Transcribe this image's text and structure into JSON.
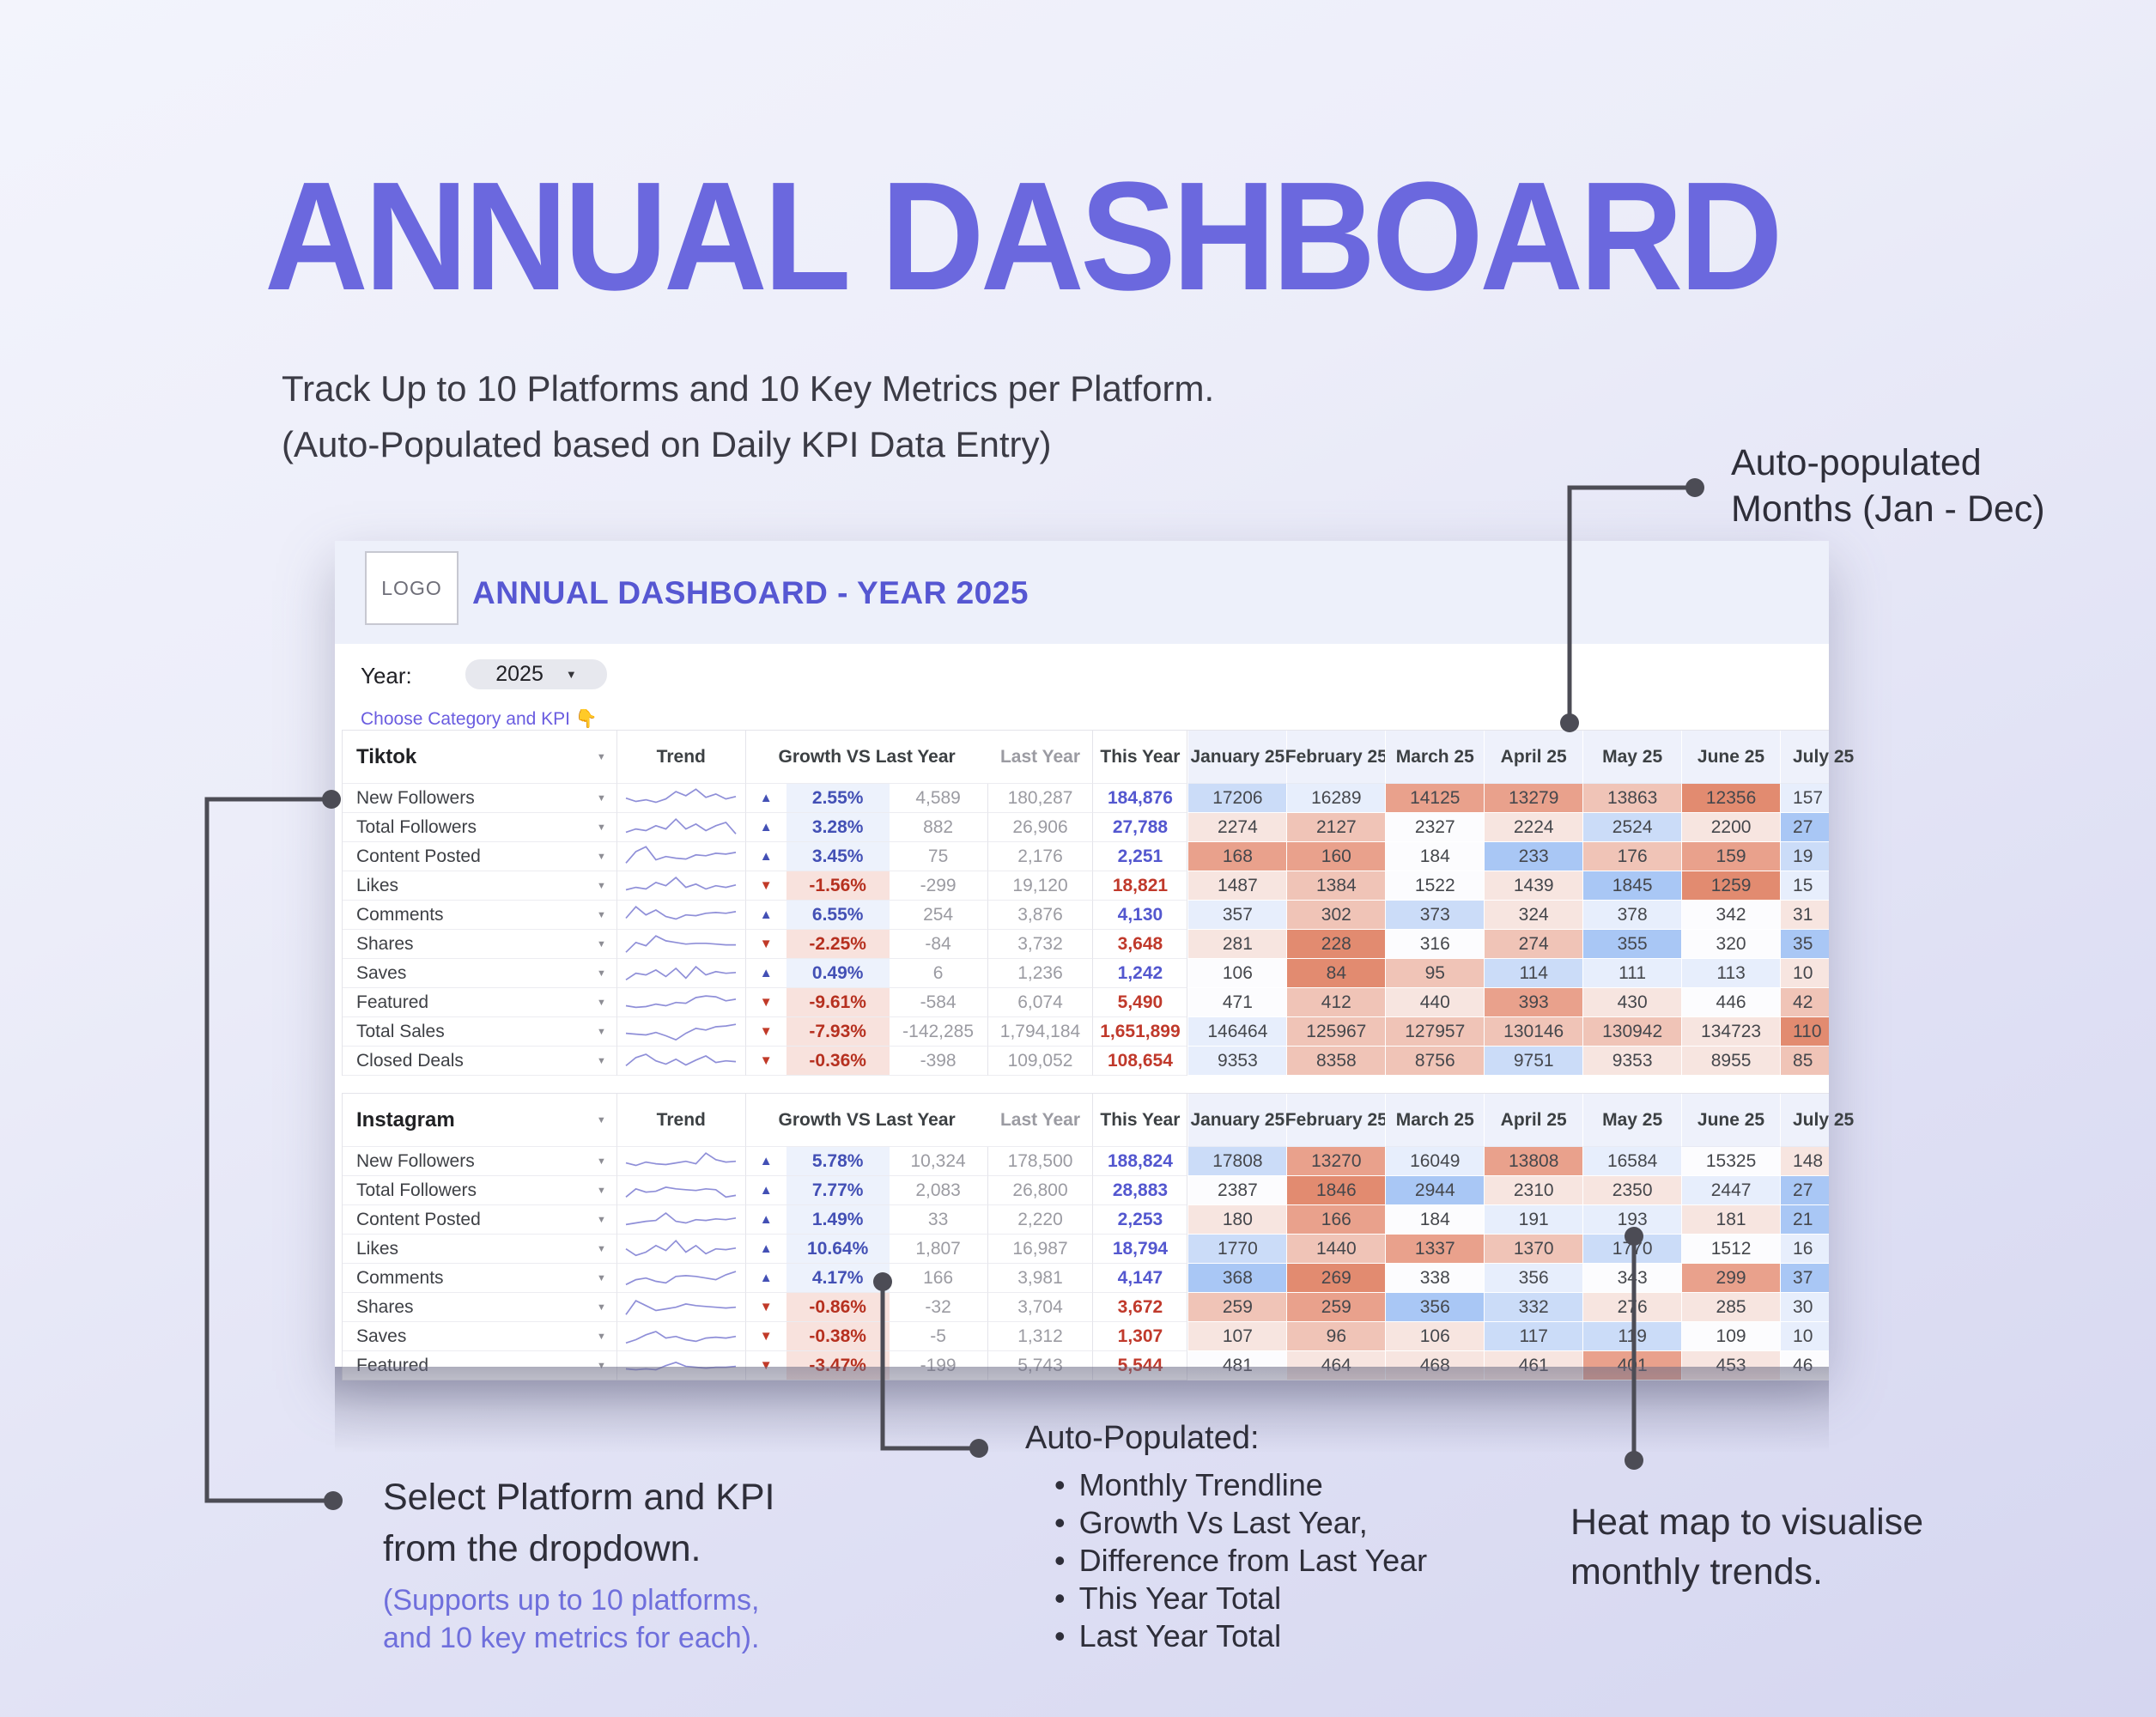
{
  "page": {
    "title": "ANNUAL DASHBOARD",
    "subtitle1": "Track Up to 10 Platforms and 10 Key Metrics per Platform.",
    "subtitle2": "(Auto-Populated based on Daily KPI Data Entry)"
  },
  "colors": {
    "accent": "#6b68de",
    "sheet_title": "#5657d2",
    "positive": "#4350b5",
    "negative": "#c13a28",
    "heat_blue_strong": "#a9c7f5",
    "heat_red_strong": "#e28b70"
  },
  "sheet": {
    "logo": "LOGO",
    "header_title": "ANNUAL DASHBOARD - YEAR 2025",
    "year_label": "Year:",
    "year_value": "2025",
    "choose_hint": "Choose Category and KPI 👇",
    "columns": {
      "trend": "Trend",
      "growth": "Growth VS Last Year",
      "last_year": "Last Year",
      "this_year": "This Year"
    },
    "months": [
      "January 25",
      "February 25",
      "March 25",
      "April 25",
      "May 25",
      "June 25",
      "July 25"
    ]
  },
  "tables": [
    {
      "platform": "Tiktok",
      "rows": [
        {
          "metric": "New Followers",
          "dir": "up",
          "growth": "2.55%",
          "diff": "4,589",
          "last_year": "180,287",
          "this_year": "184,876",
          "months": [
            "17206",
            "16289",
            "14125",
            "13279",
            "13863",
            "12356",
            "157"
          ],
          "heat": [
            "b1",
            "b0",
            "r2",
            "r2",
            "r1",
            "r3",
            "b0"
          ],
          "spark": [
            14,
            10,
            12,
            9,
            13,
            22,
            17,
            25,
            15,
            19,
            13,
            16
          ]
        },
        {
          "metric": "Total Followers",
          "dir": "up",
          "growth": "3.28%",
          "diff": "882",
          "last_year": "26,906",
          "this_year": "27,788",
          "months": [
            "2274",
            "2127",
            "2327",
            "2224",
            "2524",
            "2200",
            "27"
          ],
          "heat": [
            "r0",
            "r1",
            "w",
            "r0",
            "b1",
            "r0",
            "b2"
          ],
          "spark": [
            8,
            12,
            10,
            16,
            12,
            24,
            12,
            18,
            10,
            16,
            20,
            6
          ]
        },
        {
          "metric": "Content Posted",
          "dir": "up",
          "growth": "3.45%",
          "diff": "75",
          "last_year": "2,176",
          "this_year": "2,251",
          "months": [
            "168",
            "160",
            "184",
            "233",
            "176",
            "159",
            "19"
          ],
          "heat": [
            "r2",
            "r2",
            "w",
            "b2",
            "r1",
            "r2",
            "b1"
          ],
          "spark": [
            6,
            20,
            26,
            10,
            14,
            12,
            11,
            16,
            15,
            18,
            17,
            19
          ]
        },
        {
          "metric": "Likes",
          "dir": "down",
          "growth": "-1.56%",
          "diff": "-299",
          "last_year": "19,120",
          "this_year": "18,821",
          "months": [
            "1487",
            "1384",
            "1522",
            "1439",
            "1845",
            "1259",
            "15"
          ],
          "heat": [
            "r0",
            "r1",
            "w",
            "r0",
            "b2",
            "r3",
            "b0"
          ],
          "spark": [
            9,
            12,
            10,
            18,
            14,
            24,
            12,
            16,
            10,
            14,
            12,
            15
          ]
        },
        {
          "metric": "Comments",
          "dir": "up",
          "growth": "6.55%",
          "diff": "254",
          "last_year": "3,876",
          "this_year": "4,130",
          "months": [
            "357",
            "302",
            "373",
            "324",
            "378",
            "342",
            "31"
          ],
          "heat": [
            "b0",
            "r1",
            "b1",
            "r0",
            "b0",
            "w",
            "r0"
          ],
          "spark": [
            10,
            24,
            14,
            20,
            12,
            9,
            14,
            13,
            16,
            17,
            16,
            18
          ]
        },
        {
          "metric": "Shares",
          "dir": "down",
          "growth": "-2.25%",
          "diff": "-84",
          "last_year": "3,732",
          "this_year": "3,648",
          "months": [
            "281",
            "228",
            "316",
            "274",
            "355",
            "320",
            "35"
          ],
          "heat": [
            "r0",
            "r3",
            "w",
            "r1",
            "b2",
            "w",
            "b2"
          ],
          "spark": [
            4,
            16,
            12,
            24,
            18,
            16,
            14,
            15,
            15,
            14,
            13,
            13
          ]
        },
        {
          "metric": "Saves",
          "dir": "up",
          "growth": "0.49%",
          "diff": "6",
          "last_year": "1,236",
          "this_year": "1,242",
          "months": [
            "106",
            "84",
            "95",
            "114",
            "111",
            "113",
            "10"
          ],
          "heat": [
            "w",
            "r3",
            "r1",
            "b1",
            "b0",
            "b0",
            "r0"
          ],
          "spark": [
            6,
            14,
            12,
            18,
            10,
            20,
            8,
            22,
            12,
            16,
            14,
            15
          ]
        },
        {
          "metric": "Featured",
          "dir": "down",
          "growth": "-9.61%",
          "diff": "-584",
          "last_year": "6,074",
          "this_year": "5,490",
          "months": [
            "471",
            "412",
            "440",
            "393",
            "430",
            "446",
            "42"
          ],
          "heat": [
            "w",
            "r1",
            "r0",
            "r2",
            "r0",
            "w",
            "r1"
          ],
          "spark": [
            10,
            8,
            9,
            12,
            10,
            14,
            13,
            20,
            22,
            21,
            16,
            18
          ]
        },
        {
          "metric": "Total Sales",
          "dir": "down",
          "growth": "-7.93%",
          "diff": "-142,285",
          "last_year": "1,794,184",
          "this_year": "1,651,899",
          "months": [
            "146464",
            "125967",
            "127957",
            "130146",
            "130942",
            "134723",
            "110"
          ],
          "heat": [
            "b0",
            "r1",
            "r1",
            "r1",
            "r1",
            "r0",
            "r3"
          ],
          "spark": [
            12,
            11,
            10,
            13,
            9,
            4,
            12,
            18,
            16,
            20,
            21,
            23
          ]
        },
        {
          "metric": "Closed Deals",
          "dir": "down",
          "growth": "-0.36%",
          "diff": "-398",
          "last_year": "109,052",
          "this_year": "108,654",
          "months": [
            "9353",
            "8358",
            "8756",
            "9751",
            "9353",
            "8955",
            "85"
          ],
          "heat": [
            "b0",
            "r1",
            "r1",
            "b1",
            "r0",
            "r0",
            "r1"
          ],
          "spark": [
            8,
            18,
            22,
            14,
            10,
            16,
            9,
            15,
            20,
            12,
            14,
            13
          ]
        }
      ]
    },
    {
      "platform": "Instagram",
      "rows": [
        {
          "metric": "New Followers",
          "dir": "up",
          "growth": "5.78%",
          "diff": "10,324",
          "last_year": "178,500",
          "this_year": "188,824",
          "months": [
            "17808",
            "13270",
            "16049",
            "13808",
            "16584",
            "15325",
            "148"
          ],
          "heat": [
            "b1",
            "r2",
            "b0",
            "r2",
            "b0",
            "w",
            "r0"
          ],
          "spark": [
            12,
            9,
            13,
            11,
            10,
            12,
            14,
            11,
            24,
            16,
            13,
            14
          ]
        },
        {
          "metric": "Total Followers",
          "dir": "up",
          "growth": "7.77%",
          "diff": "2,083",
          "last_year": "26,800",
          "this_year": "28,883",
          "months": [
            "2387",
            "1846",
            "2944",
            "2310",
            "2350",
            "2447",
            "27"
          ],
          "heat": [
            "w",
            "r3",
            "b2",
            "r0",
            "r0",
            "b0",
            "b2"
          ],
          "spark": [
            6,
            16,
            12,
            13,
            18,
            16,
            15,
            14,
            16,
            15,
            6,
            8
          ]
        },
        {
          "metric": "Content Posted",
          "dir": "up",
          "growth": "1.49%",
          "diff": "33",
          "last_year": "2,220",
          "this_year": "2,253",
          "months": [
            "180",
            "166",
            "184",
            "191",
            "193",
            "181",
            "21"
          ],
          "heat": [
            "r0",
            "r2",
            "w",
            "b0",
            "b0",
            "r0",
            "b2"
          ],
          "spark": [
            8,
            10,
            12,
            13,
            22,
            12,
            10,
            14,
            13,
            15,
            14,
            16
          ]
        },
        {
          "metric": "Likes",
          "dir": "up",
          "growth": "10.64%",
          "diff": "1,807",
          "last_year": "16,987",
          "this_year": "18,794",
          "months": [
            "1770",
            "1440",
            "1337",
            "1370",
            "1770",
            "1512",
            "16"
          ],
          "heat": [
            "b1",
            "r1",
            "r2",
            "r1",
            "b1",
            "w",
            "b0"
          ],
          "spark": [
            14,
            6,
            10,
            18,
            12,
            24,
            10,
            18,
            8,
            14,
            13,
            15
          ]
        },
        {
          "metric": "Comments",
          "dir": "up",
          "growth": "4.17%",
          "diff": "166",
          "last_year": "3,981",
          "this_year": "4,147",
          "months": [
            "368",
            "269",
            "338",
            "356",
            "343",
            "299",
            "37"
          ],
          "heat": [
            "b2",
            "r3",
            "w",
            "b0",
            "w",
            "r2",
            "b2"
          ],
          "spark": [
            6,
            12,
            14,
            10,
            8,
            16,
            17,
            16,
            14,
            12,
            18,
            22
          ]
        },
        {
          "metric": "Shares",
          "dir": "down",
          "growth": "-0.86%",
          "diff": "-32",
          "last_year": "3,704",
          "this_year": "3,672",
          "months": [
            "259",
            "259",
            "356",
            "332",
            "276",
            "285",
            "30"
          ],
          "heat": [
            "r1",
            "r2",
            "b2",
            "b1",
            "r0",
            "r0",
            "b0"
          ],
          "spark": [
            5,
            22,
            16,
            10,
            12,
            14,
            18,
            16,
            15,
            14,
            13,
            14
          ]
        },
        {
          "metric": "Saves",
          "dir": "down",
          "growth": "-0.38%",
          "diff": "-5",
          "last_year": "1,312",
          "this_year": "1,307",
          "months": [
            "107",
            "96",
            "106",
            "117",
            "119",
            "109",
            "10"
          ],
          "heat": [
            "r0",
            "r1",
            "r0",
            "b1",
            "b1",
            "w",
            "b0"
          ],
          "spark": [
            6,
            10,
            16,
            20,
            12,
            14,
            10,
            8,
            12,
            13,
            12,
            14
          ]
        },
        {
          "metric": "Featured",
          "dir": "down",
          "growth": "-3.47%",
          "diff": "-199",
          "last_year": "5,743",
          "this_year": "5,544",
          "months": [
            "481",
            "464",
            "468",
            "461",
            "401",
            "453",
            "46"
          ],
          "heat": [
            "w",
            "r0",
            "r0",
            "r0",
            "r2",
            "r0",
            "w"
          ],
          "spark": [
            10,
            9,
            10,
            9,
            14,
            18,
            13,
            12,
            11,
            12,
            12,
            13
          ]
        }
      ]
    }
  ],
  "annotations": {
    "months_note1": "Auto-populated",
    "months_note2": "Months (Jan - Dec)",
    "select_note1": "Select Platform and KPI",
    "select_note2": "from the dropdown.",
    "select_sub1": "(Supports up to 10 platforms,",
    "select_sub2": "and 10 key metrics for each).",
    "auto_title": "Auto-Populated:",
    "auto_bullets": [
      "Monthly Trendline",
      "Growth Vs Last Year,",
      "Difference from Last Year",
      "This Year Total",
      "Last Year Total"
    ],
    "heat_note1": "Heat map to visualise",
    "heat_note2": "monthly trends."
  }
}
